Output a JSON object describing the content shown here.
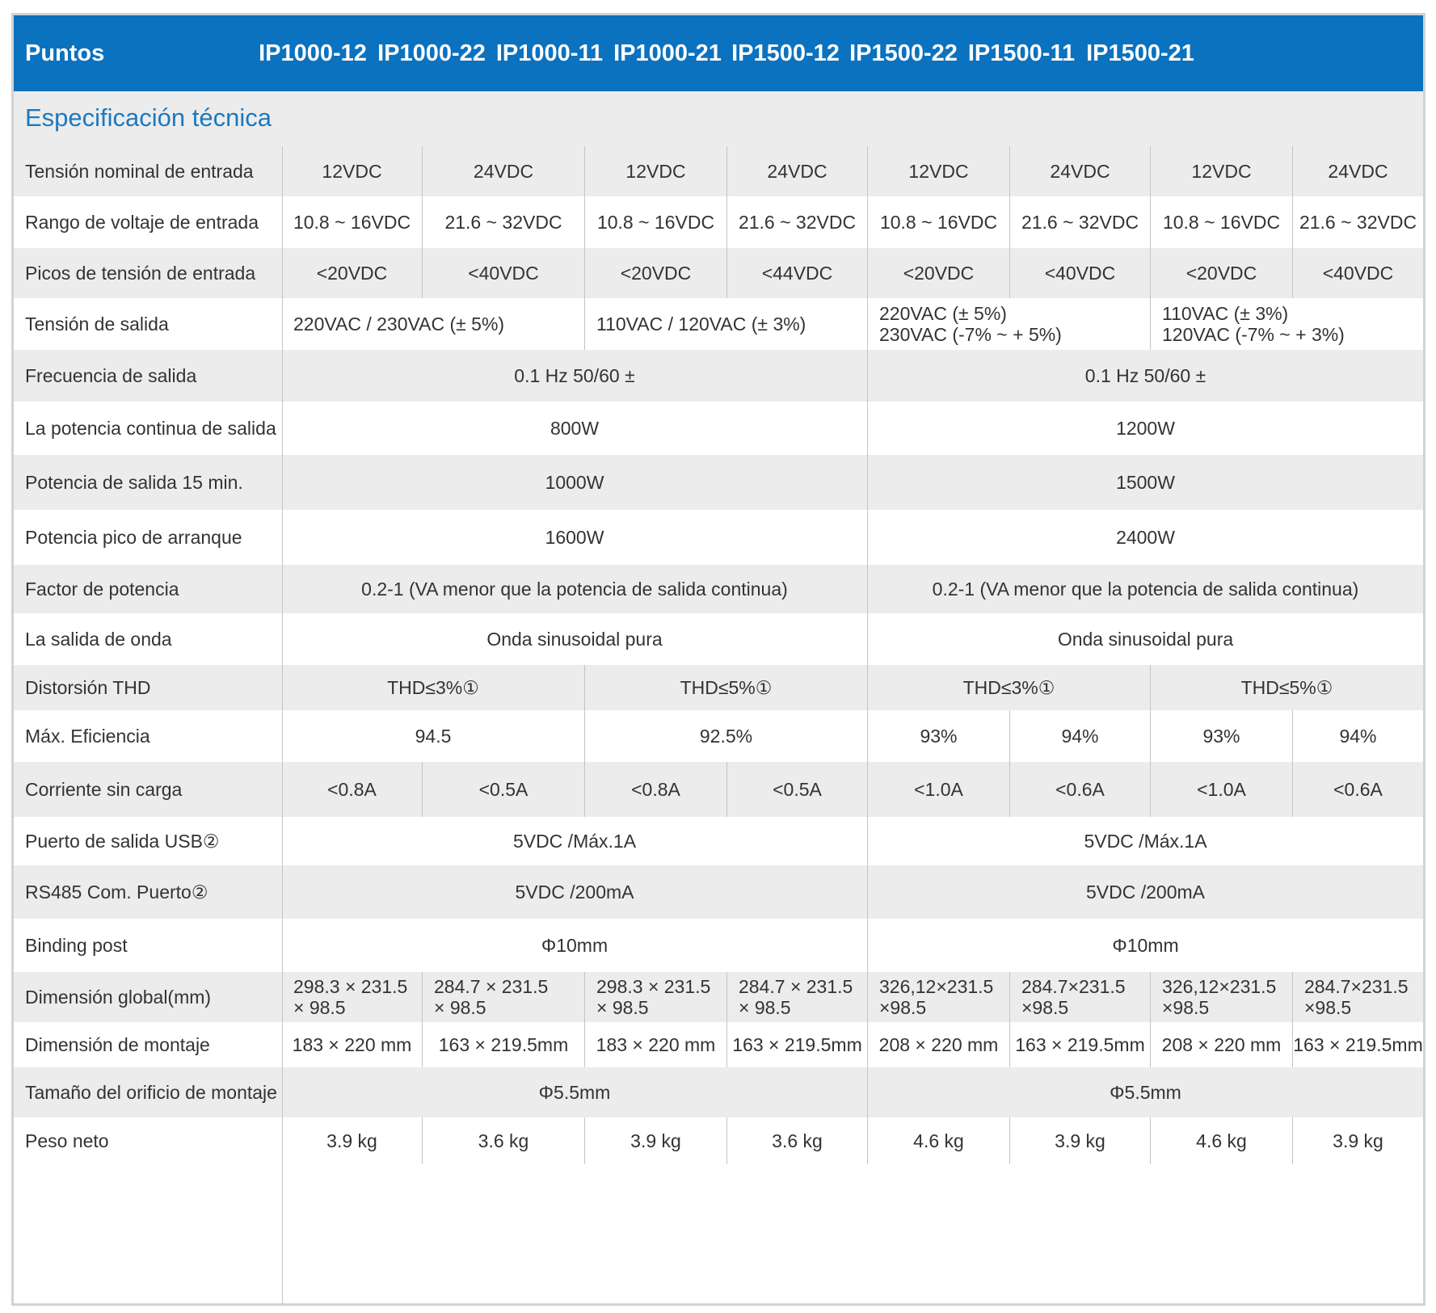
{
  "header": {
    "title": "Puntos",
    "models": [
      "IP1000-12",
      "IP1000-22",
      "IP1000-11",
      "IP1000-21",
      "IP1500-12",
      "IP1500-22",
      "IP1500-11",
      "IP1500-21"
    ]
  },
  "section": {
    "title": "Especificación técnica"
  },
  "rows": [
    {
      "label": "Tensión nominal de entrada",
      "cells": [
        "12VDC",
        "24VDC",
        "12VDC",
        "24VDC",
        "12VDC",
        "24VDC",
        "12VDC",
        "24VDC"
      ]
    },
    {
      "label": "Rango de voltaje de entrada",
      "cells": [
        "10.8 ~ 16VDC",
        "21.6 ~ 32VDC",
        "10.8 ~ 16VDC",
        "21.6 ~ 32VDC",
        "10.8 ~ 16VDC",
        "21.6 ~ 32VDC",
        "10.8 ~ 16VDC",
        "21.6 ~ 32VDC"
      ]
    },
    {
      "label": "Picos de tensión de entrada",
      "cells": [
        "<20VDC",
        "<40VDC",
        "<20VDC",
        "<44VDC",
        "<20VDC",
        "<40VDC",
        "<20VDC",
        "<40VDC"
      ]
    },
    {
      "label": "Tensión de salida",
      "cells": [
        "220VAC / 230VAC (± 5%)",
        "110VAC / 120VAC (± 3%)",
        "220VAC (± 5%)\n230VAC (-7% ~ + 5%)",
        "110VAC (± 3%)\n120VAC (-7% ~ + 3%)"
      ]
    },
    {
      "label": "Frecuencia de salida",
      "cells": [
        "0.1 Hz 50/60 ±",
        "0.1 Hz 50/60 ±"
      ]
    },
    {
      "label": "La potencia continua de salida",
      "cells": [
        "800W",
        "1200W"
      ]
    },
    {
      "label": "Potencia de salida 15 min.",
      "cells": [
        "1000W",
        "1500W"
      ]
    },
    {
      "label": "Potencia pico de arranque",
      "cells": [
        "1600W",
        "2400W"
      ]
    },
    {
      "label": "Factor de potencia",
      "cells": [
        "0.2-1 (VA menor que la potencia de salida continua)",
        "0.2-1 (VA menor que la potencia de salida continua)"
      ]
    },
    {
      "label": "La salida de onda",
      "cells": [
        "Onda sinusoidal pura",
        "Onda sinusoidal pura"
      ]
    },
    {
      "label": "Distorsión THD",
      "cells": [
        "THD≤3%①",
        "THD≤5%①",
        "THD≤3%①",
        "THD≤5%①"
      ]
    },
    {
      "label": "Máx. Eficiencia",
      "cells": [
        "94.5",
        "92.5%",
        "93%",
        "94%",
        "93%",
        "94%"
      ]
    },
    {
      "label": "Corriente sin carga",
      "cells": [
        "<0.8A",
        "<0.5A",
        "<0.8A",
        "<0.5A",
        "<1.0A",
        "<0.6A",
        "<1.0A",
        "<0.6A"
      ]
    },
    {
      "label": "Puerto de salida USB②",
      "cells": [
        "5VDC /Máx.1A",
        "5VDC /Máx.1A"
      ]
    },
    {
      "label": "RS485 Com. Puerto②",
      "cells": [
        "5VDC /200mA",
        "5VDC /200mA"
      ]
    },
    {
      "label": "Binding post",
      "cells": [
        "Φ10mm",
        "Φ10mm"
      ]
    },
    {
      "label": "Dimensión global(mm)",
      "cells": [
        "298.3 × 231.5\n× 98.5",
        "284.7 × 231.5\n× 98.5",
        "298.3 × 231.5\n× 98.5",
        "284.7 × 231.5\n× 98.5",
        "326,12×231.5\n×98.5",
        "284.7×231.5\n×98.5",
        "326,12×231.5\n×98.5",
        "284.7×231.5\n×98.5"
      ]
    },
    {
      "label": "Dimensión de montaje",
      "cells": [
        "183 × 220 mm",
        "163 × 219.5mm",
        "183 × 220 mm",
        "163 × 219.5mm",
        "208 × 220 mm",
        "163 × 219.5mm",
        "208 × 220 mm",
        "163 × 219.5mm"
      ]
    },
    {
      "label": "Tamaño del orificio de montaje",
      "cells": [
        "Φ5.5mm",
        "Φ5.5mm"
      ]
    },
    {
      "label": "Peso neto",
      "cells": [
        "3.9 kg",
        "3.6 kg",
        "3.9 kg",
        "3.6 kg",
        "4.6 kg",
        "3.9 kg",
        "4.6 kg",
        "3.9 kg"
      ]
    }
  ]
}
